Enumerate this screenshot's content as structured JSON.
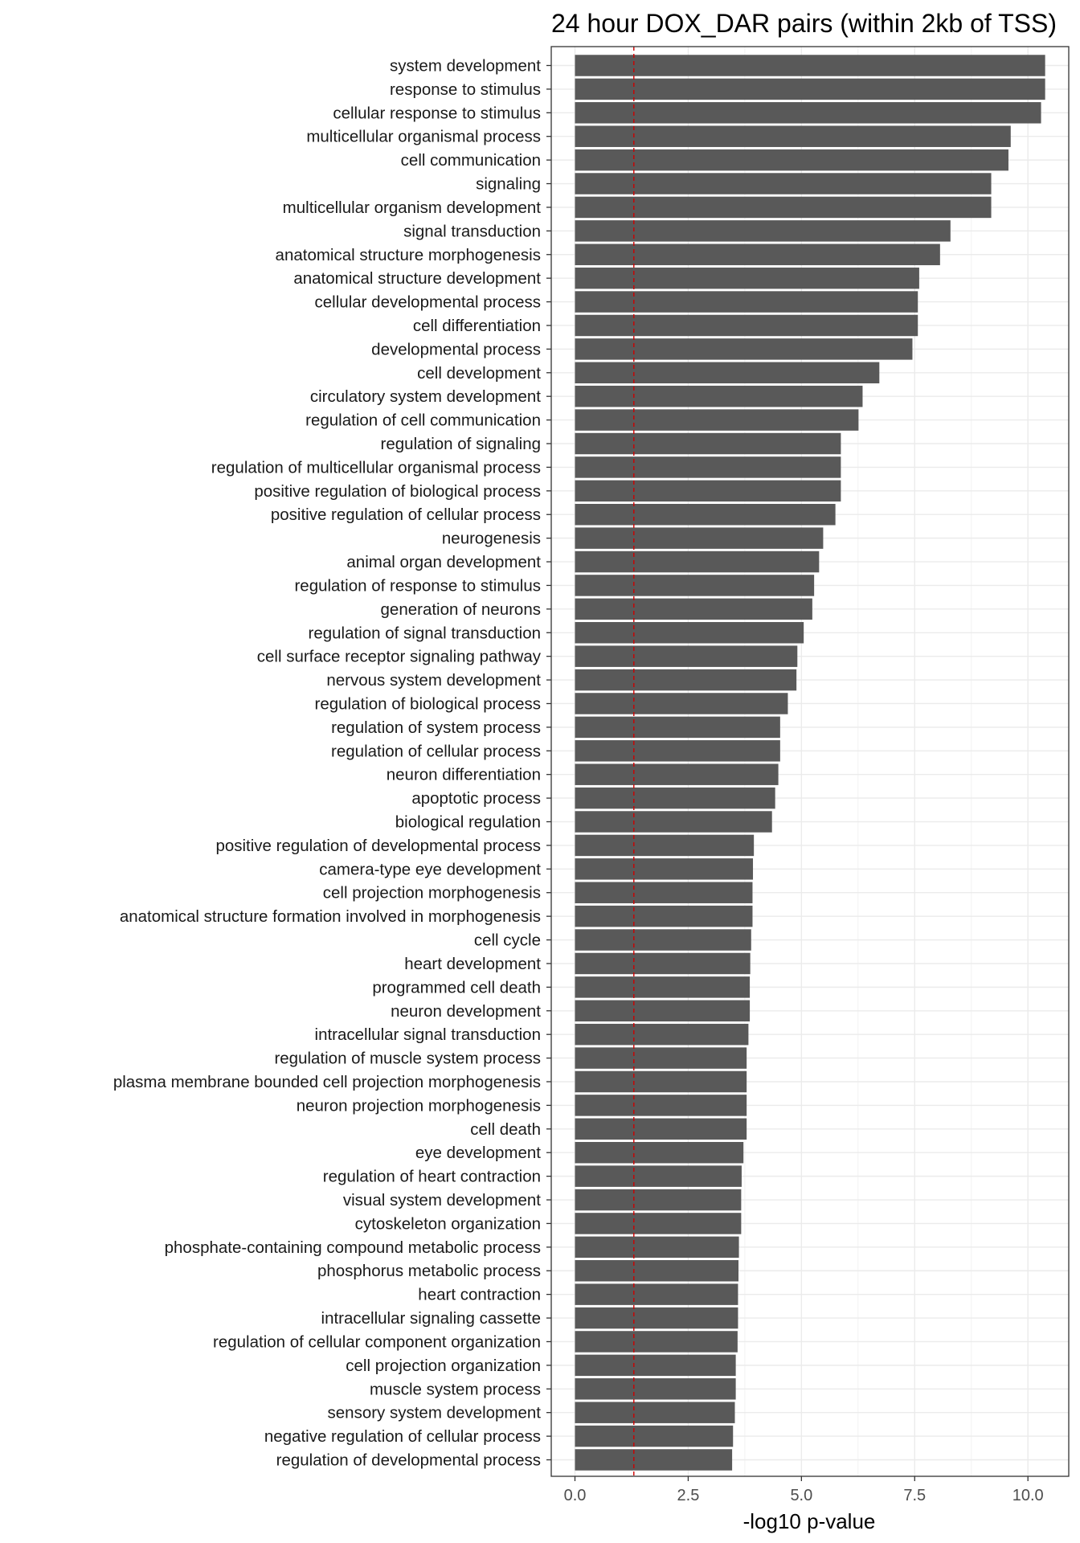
{
  "chart_data": {
    "type": "bar",
    "orientation": "horizontal",
    "title": "24 hour DOX_DAR pairs (within 2kb of TSS)",
    "xlabel": "-log10 p-value",
    "ylabel": "",
    "xlim": [
      -0.55,
      11.0
    ],
    "xticks": [
      0.0,
      2.5,
      5.0,
      7.5,
      10.0
    ],
    "xtick_labels": [
      "0.0",
      "2.5",
      "5.0",
      "7.5",
      "10.0"
    ],
    "reference_line": {
      "value": 1.3,
      "style": "dashed",
      "color": "#cc0000"
    },
    "bar_color": "#595959",
    "grid": true,
    "categories": [
      "system development",
      "response to stimulus",
      "cellular response to stimulus",
      "multicellular organismal process",
      "cell communication",
      "signaling",
      "multicellular organism development",
      "signal transduction",
      "anatomical structure morphogenesis",
      "anatomical structure development",
      "cellular developmental process",
      "cell differentiation",
      "developmental process",
      "cell development",
      "circulatory system development",
      "regulation of cell communication",
      "regulation of signaling",
      "regulation of multicellular organismal process",
      "positive regulation of biological process",
      "positive regulation of cellular process",
      "neurogenesis",
      "animal organ development",
      "regulation of response to stimulus",
      "generation of neurons",
      "regulation of signal transduction",
      "cell surface receptor signaling pathway",
      "nervous system development",
      "regulation of biological process",
      "regulation of system process",
      "regulation of cellular process",
      "neuron differentiation",
      "apoptotic process",
      "biological regulation",
      "positive regulation of developmental process",
      "camera-type eye development",
      "cell projection morphogenesis",
      "anatomical structure formation involved in morphogenesis",
      "cell cycle",
      "heart development",
      "programmed cell death",
      "neuron development",
      "intracellular signal transduction",
      "regulation of muscle system process",
      "plasma membrane bounded cell projection morphogenesis",
      "neuron projection morphogenesis",
      "cell death",
      "eye development",
      "regulation of heart contraction",
      "visual system development",
      "cytoskeleton organization",
      "phosphate-containing compound metabolic process",
      "phosphorus metabolic process",
      "heart contraction",
      "intracellular signaling cassette",
      "regulation of cellular component organization",
      "cell projection organization",
      "muscle system process",
      "sensory system development",
      "negative regulation of cellular process",
      "regulation of developmental process"
    ],
    "values": [
      10.38,
      10.38,
      10.29,
      9.62,
      9.57,
      9.19,
      9.19,
      8.29,
      8.06,
      7.6,
      7.57,
      7.57,
      7.45,
      6.72,
      6.35,
      6.26,
      5.87,
      5.87,
      5.87,
      5.75,
      5.48,
      5.39,
      5.28,
      5.24,
      5.05,
      4.91,
      4.89,
      4.7,
      4.53,
      4.53,
      4.49,
      4.42,
      4.35,
      3.95,
      3.93,
      3.92,
      3.92,
      3.89,
      3.87,
      3.86,
      3.86,
      3.83,
      3.79,
      3.79,
      3.79,
      3.79,
      3.72,
      3.68,
      3.67,
      3.67,
      3.62,
      3.61,
      3.6,
      3.6,
      3.59,
      3.55,
      3.55,
      3.53,
      3.49,
      3.47
    ]
  }
}
